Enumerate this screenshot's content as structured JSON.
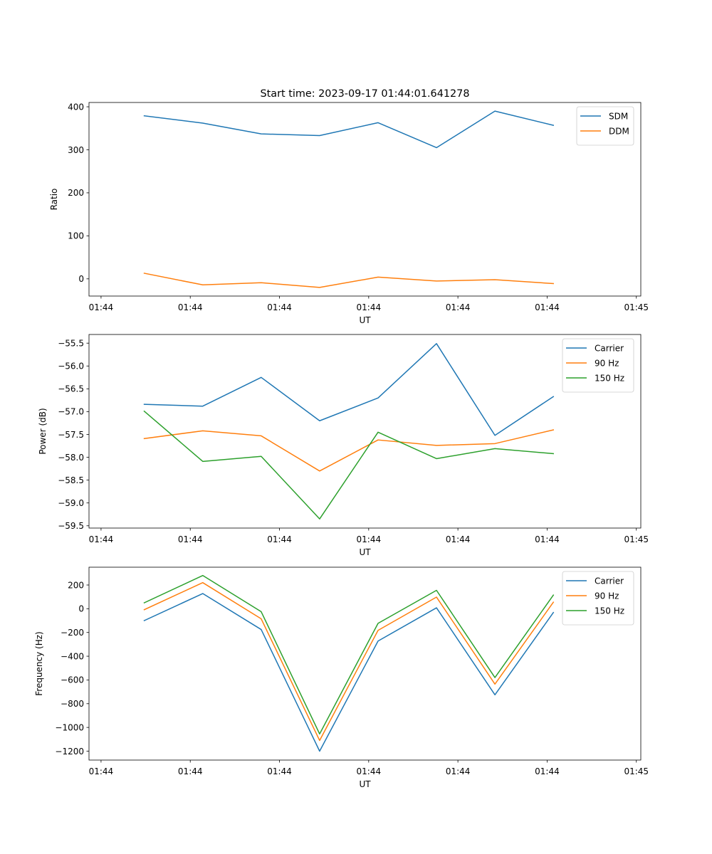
{
  "figure_title": "Start time: 2023-09-17 01:44:01.641278",
  "chart_data": [
    {
      "type": "line",
      "title": "Start time: 2023-09-17 01:44:01.641278",
      "xlabel": "UT",
      "ylabel": "Ratio",
      "x_unit": "seconds after 01:44:00",
      "x": [
        4.84,
        11.4,
        17.95,
        24.5,
        31.05,
        37.6,
        44.15,
        50.7
      ],
      "xlim": [
        -1.35,
        60.5
      ],
      "x_ticks": [
        0,
        10,
        20,
        30,
        40,
        50,
        60
      ],
      "x_tick_labels": [
        "01:44",
        "01:44",
        "01:44",
        "01:44",
        "01:44",
        "01:44",
        "01:45"
      ],
      "ylim": [
        -40,
        410
      ],
      "y_ticks": [
        0,
        100,
        200,
        300,
        400
      ],
      "y_tick_labels": [
        "0",
        "100",
        "200",
        "300",
        "400"
      ],
      "legend_position": "top-right",
      "grid": false,
      "series": [
        {
          "name": "SDM",
          "color": "#1f77b4",
          "values": [
            379,
            362,
            337,
            333,
            363,
            305,
            390,
            357
          ]
        },
        {
          "name": "DDM",
          "color": "#ff7f0e",
          "values": [
            13,
            -14,
            -9,
            -20,
            4,
            -5,
            -2,
            -11
          ]
        }
      ]
    },
    {
      "type": "line",
      "title": "",
      "xlabel": "UT",
      "ylabel": "Power (dB)",
      "x_unit": "seconds after 01:44:00",
      "x": [
        4.84,
        11.4,
        17.95,
        24.5,
        31.05,
        37.6,
        44.15,
        50.7
      ],
      "xlim": [
        -1.35,
        60.5
      ],
      "x_ticks": [
        0,
        10,
        20,
        30,
        40,
        50,
        60
      ],
      "x_tick_labels": [
        "01:44",
        "01:44",
        "01:44",
        "01:44",
        "01:44",
        "01:44",
        "01:45"
      ],
      "ylim": [
        -59.55,
        -55.31
      ],
      "y_ticks": [
        -55.5,
        -56.0,
        -56.5,
        -57.0,
        -57.5,
        -58.0,
        -58.5,
        -59.0,
        -59.5
      ],
      "y_tick_labels": [
        "−55.5",
        "−56.0",
        "−56.5",
        "−57.0",
        "−57.5",
        "−58.0",
        "−58.5",
        "−59.0",
        "−59.5"
      ],
      "legend_position": "top-right",
      "grid": false,
      "series": [
        {
          "name": "Carrier",
          "color": "#1f77b4",
          "values": [
            -56.84,
            -56.88,
            -56.25,
            -57.2,
            -56.7,
            -55.51,
            -57.52,
            -56.67
          ]
        },
        {
          "name": "90 Hz",
          "color": "#ff7f0e",
          "values": [
            -57.59,
            -57.42,
            -57.53,
            -58.3,
            -57.62,
            -57.74,
            -57.7,
            -57.4
          ]
        },
        {
          "name": "150 Hz",
          "color": "#2ca02c",
          "values": [
            -56.99,
            -58.09,
            -57.98,
            -59.35,
            -57.45,
            -58.03,
            -57.81,
            -57.92
          ]
        }
      ]
    },
    {
      "type": "line",
      "title": "",
      "xlabel": "UT",
      "ylabel": "Frequency (Hz)",
      "x_unit": "seconds after 01:44:00",
      "x": [
        4.84,
        11.4,
        17.95,
        24.5,
        31.05,
        37.6,
        44.15,
        50.7
      ],
      "xlim": [
        -1.35,
        60.5
      ],
      "x_ticks": [
        0,
        10,
        20,
        30,
        40,
        50,
        60
      ],
      "x_tick_labels": [
        "01:44",
        "01:44",
        "01:44",
        "01:44",
        "01:44",
        "01:44",
        "01:45"
      ],
      "ylim": [
        -1275,
        350
      ],
      "y_ticks": [
        200,
        0,
        -200,
        -400,
        -600,
        -800,
        -1000,
        -1200
      ],
      "y_tick_labels": [
        "200",
        "0",
        "−200",
        "−400",
        "−600",
        "−800",
        "−1000",
        "−1200"
      ],
      "legend_position": "top-right",
      "grid": false,
      "series": [
        {
          "name": "Carrier",
          "color": "#1f77b4",
          "values": [
            -100,
            128,
            -175,
            -1200,
            -272,
            8,
            -725,
            -32
          ]
        },
        {
          "name": "90 Hz",
          "color": "#ff7f0e",
          "values": [
            -8,
            220,
            -85,
            -1110,
            -182,
            98,
            -635,
            55
          ]
        },
        {
          "name": "150 Hz",
          "color": "#2ca02c",
          "values": [
            50,
            280,
            -25,
            -1055,
            -123,
            155,
            -580,
            115
          ]
        }
      ]
    }
  ]
}
